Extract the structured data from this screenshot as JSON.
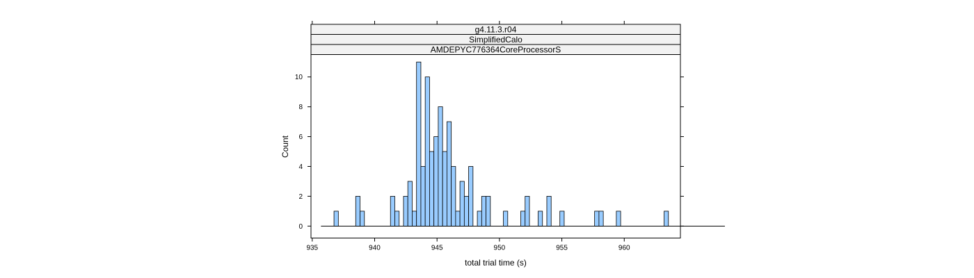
{
  "chart_data": {
    "type": "bar",
    "strips": [
      "g4.11.3.r04",
      "SimplifiedCalo",
      "AMDEPYC776364CoreProcessorS"
    ],
    "xlabel": "total trial time (s)",
    "ylabel": "Count",
    "xlim": [
      934.9,
      964.5
    ],
    "ylim": [
      -0.8,
      11.5
    ],
    "xticks": [
      935,
      940,
      945,
      950,
      955,
      960
    ],
    "yticks": [
      0,
      2,
      4,
      6,
      8,
      10
    ],
    "bin_start": 935.7,
    "bin_width": 0.348,
    "values": [
      0,
      0,
      0,
      1,
      0,
      0,
      0,
      0,
      2,
      1,
      0,
      0,
      0,
      0,
      0,
      0,
      2,
      1,
      0,
      2,
      3,
      1,
      11,
      4,
      10,
      5,
      6,
      8,
      5,
      7,
      4,
      1,
      3,
      2,
      4,
      0,
      1,
      2,
      2,
      0,
      0,
      0,
      1,
      0,
      0,
      0,
      1,
      2,
      0,
      0,
      1,
      0,
      2,
      0,
      0,
      1,
      0,
      0,
      0,
      0,
      0,
      0,
      0,
      1,
      1,
      0,
      0,
      0,
      1,
      0,
      0,
      0,
      0,
      0,
      0,
      0,
      0,
      0,
      0,
      1,
      0,
      0,
      0,
      0,
      0,
      0,
      0,
      0,
      0,
      0,
      0,
      0,
      0
    ],
    "colors": {
      "bar_fill": "#99ccff",
      "bar_stroke": "#000000",
      "strip_fill": "#f2f2f2"
    }
  }
}
